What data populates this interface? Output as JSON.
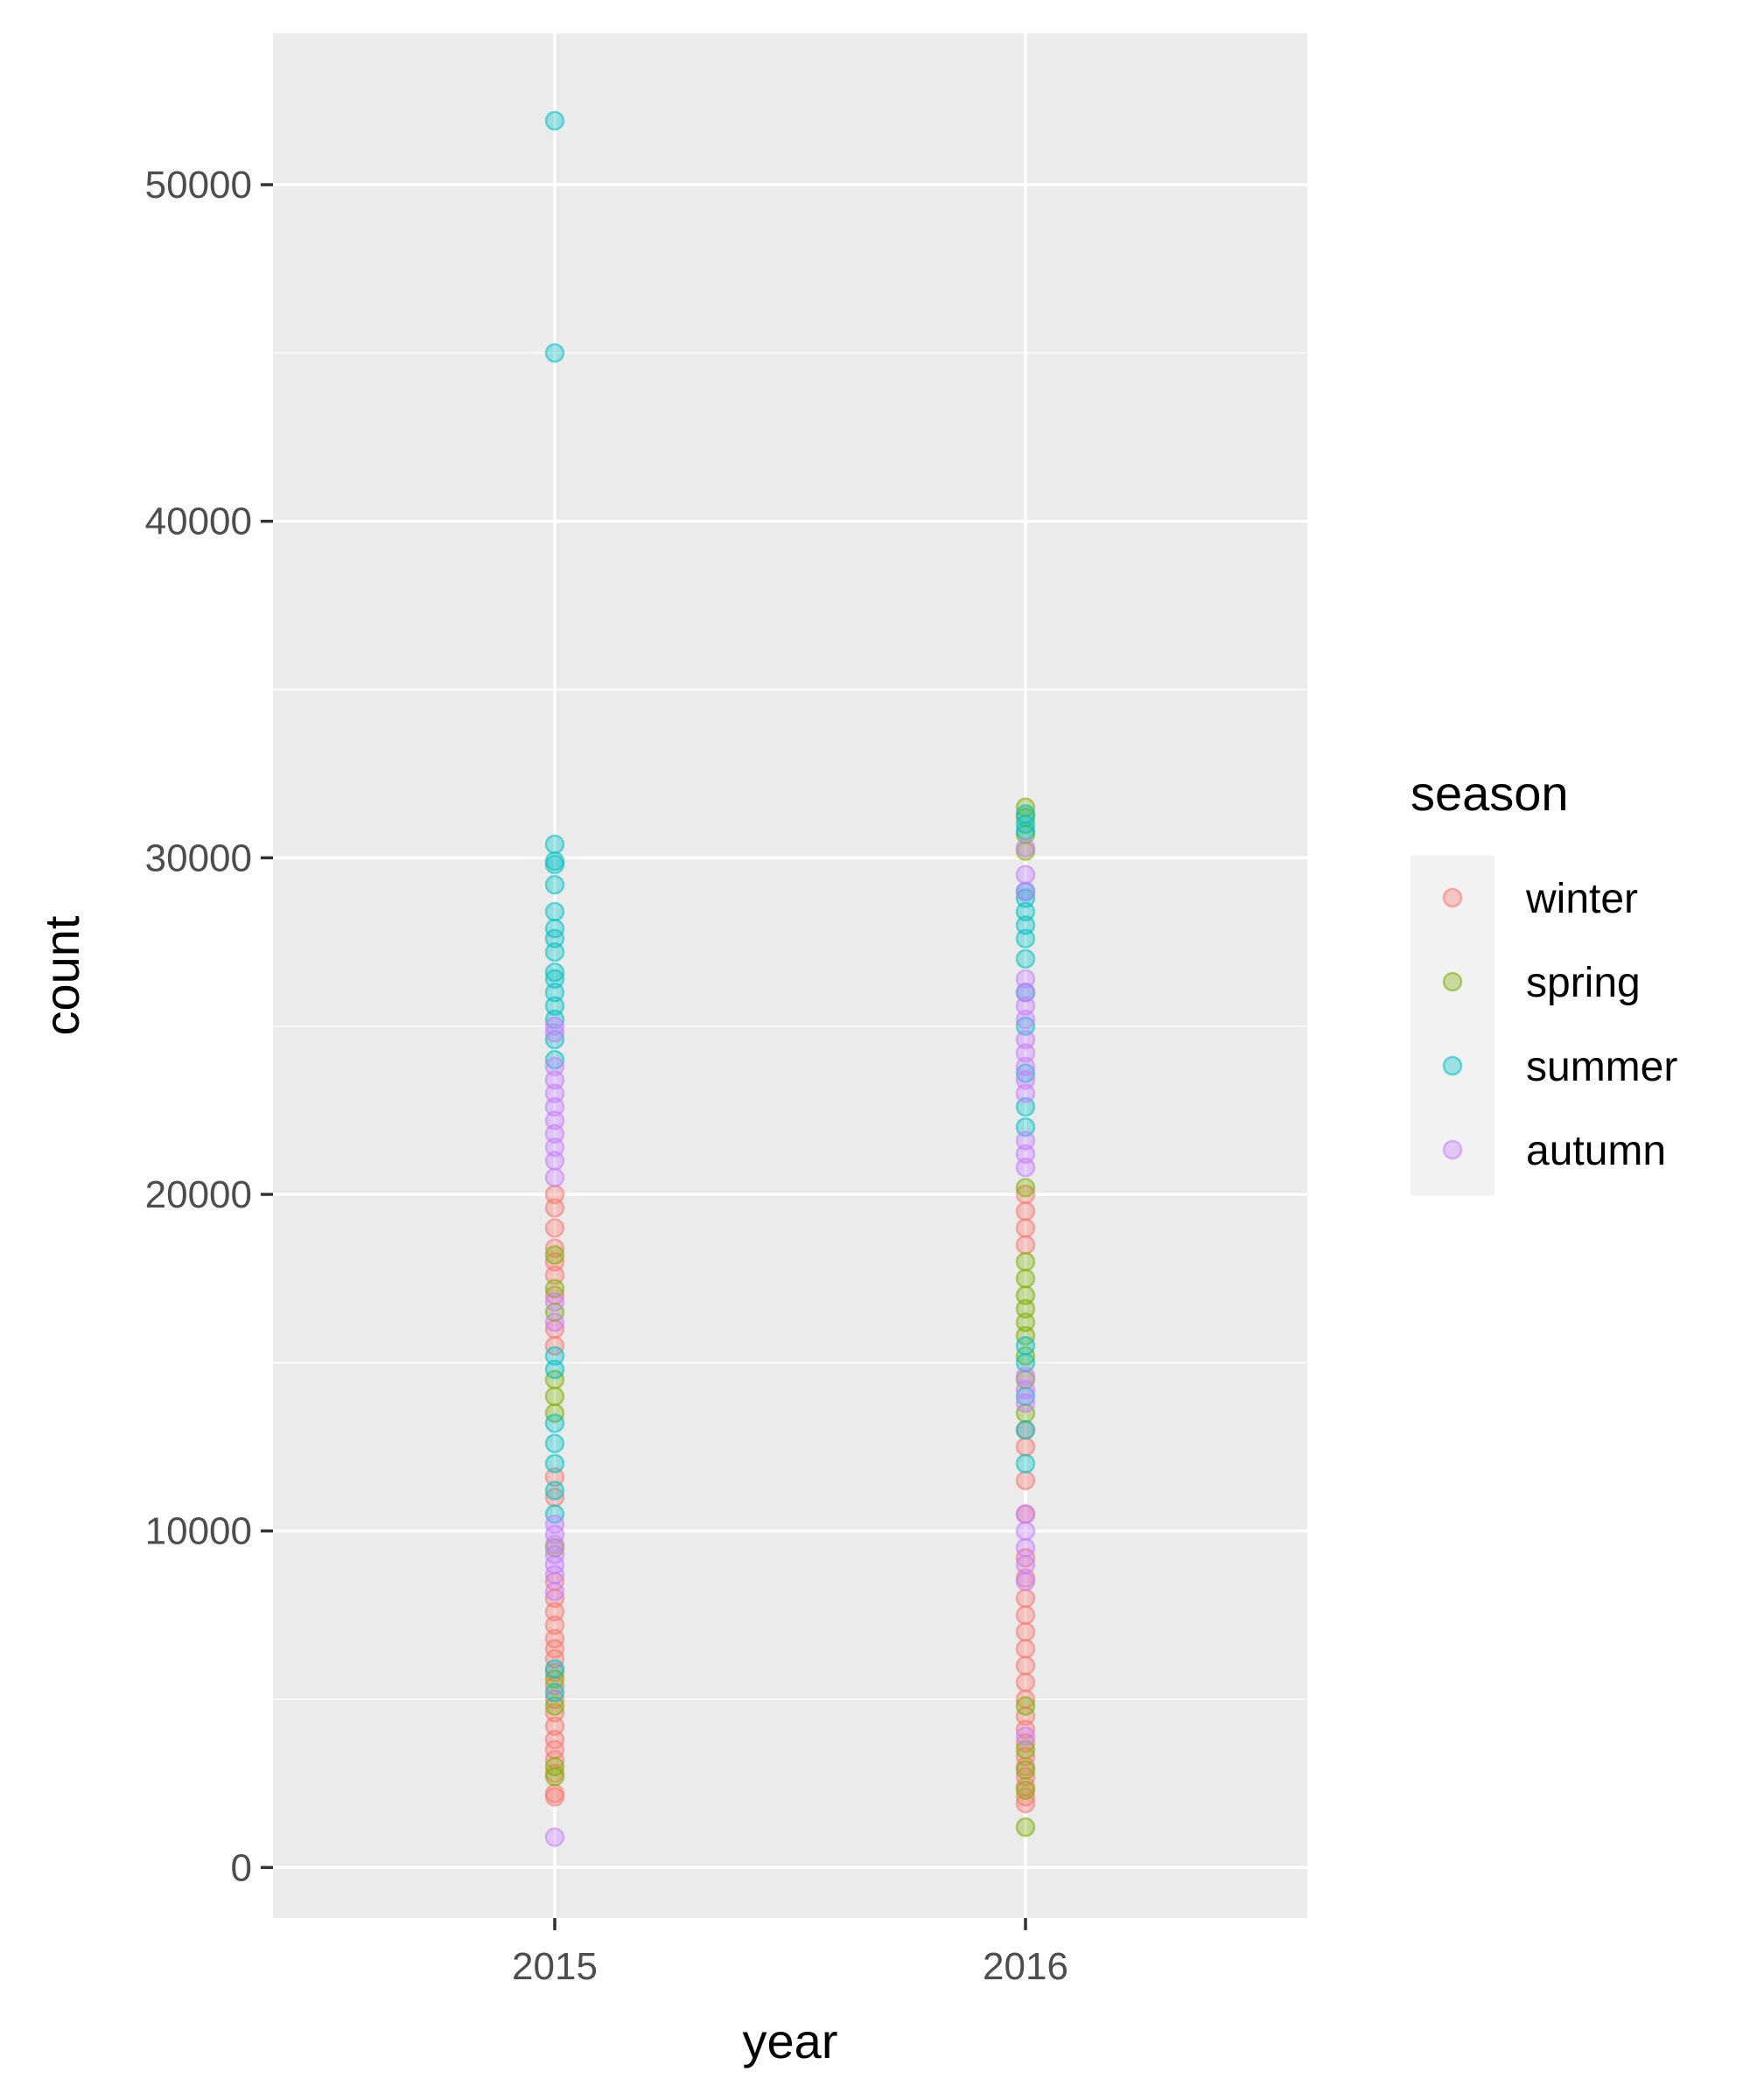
{
  "chart_data": {
    "type": "scatter",
    "xlabel": "year",
    "ylabel": "count",
    "x_categories": [
      "2015",
      "2016"
    ],
    "ylim": [
      -1500,
      54500
    ],
    "yticks": [
      0,
      10000,
      20000,
      30000,
      40000,
      50000
    ],
    "grid": true,
    "legend": {
      "title": "season",
      "position": "right",
      "entries": [
        {
          "name": "winter",
          "color": "#F8766D"
        },
        {
          "name": "spring",
          "color": "#7CAE00"
        },
        {
          "name": "summer",
          "color": "#00BFC4"
        },
        {
          "name": "autumn",
          "color": "#C77CFF"
        }
      ]
    },
    "point_alpha": 0.35,
    "series": [
      {
        "name": "winter",
        "color": "#F8766D",
        "points": [
          [
            "2015",
            2100
          ],
          [
            "2015",
            2200
          ],
          [
            "2015",
            2800
          ],
          [
            "2015",
            3200
          ],
          [
            "2015",
            3500
          ],
          [
            "2015",
            3800
          ],
          [
            "2015",
            4200
          ],
          [
            "2015",
            4600
          ],
          [
            "2015",
            5000
          ],
          [
            "2015",
            5400
          ],
          [
            "2015",
            5800
          ],
          [
            "2015",
            6200
          ],
          [
            "2015",
            6500
          ],
          [
            "2015",
            6800
          ],
          [
            "2015",
            7200
          ],
          [
            "2015",
            7600
          ],
          [
            "2015",
            8000
          ],
          [
            "2015",
            8500
          ],
          [
            "2015",
            11000
          ],
          [
            "2015",
            11600
          ],
          [
            "2015",
            15500
          ],
          [
            "2015",
            16000
          ],
          [
            "2015",
            17000
          ],
          [
            "2015",
            17600
          ],
          [
            "2015",
            18000
          ],
          [
            "2015",
            18400
          ],
          [
            "2015",
            19000
          ],
          [
            "2015",
            19600
          ],
          [
            "2015",
            20000
          ],
          [
            "2016",
            1900
          ],
          [
            "2016",
            2100
          ],
          [
            "2016",
            2400
          ],
          [
            "2016",
            2700
          ],
          [
            "2016",
            3000
          ],
          [
            "2016",
            3300
          ],
          [
            "2016",
            3700
          ],
          [
            "2016",
            4100
          ],
          [
            "2016",
            4500
          ],
          [
            "2016",
            5000
          ],
          [
            "2016",
            5500
          ],
          [
            "2016",
            6000
          ],
          [
            "2016",
            6500
          ],
          [
            "2016",
            7000
          ],
          [
            "2016",
            7500
          ],
          [
            "2016",
            8000
          ],
          [
            "2016",
            8600
          ],
          [
            "2016",
            9200
          ],
          [
            "2016",
            10500
          ],
          [
            "2016",
            11500
          ],
          [
            "2016",
            12500
          ],
          [
            "2016",
            13000
          ],
          [
            "2016",
            18500
          ],
          [
            "2016",
            19000
          ],
          [
            "2016",
            19500
          ],
          [
            "2016",
            20000
          ]
        ]
      },
      {
        "name": "spring",
        "color": "#7CAE00",
        "points": [
          [
            "2015",
            2700
          ],
          [
            "2015",
            3000
          ],
          [
            "2015",
            4800
          ],
          [
            "2015",
            5600
          ],
          [
            "2015",
            9500
          ],
          [
            "2015",
            13500
          ],
          [
            "2015",
            14000
          ],
          [
            "2015",
            14500
          ],
          [
            "2015",
            16500
          ],
          [
            "2015",
            17200
          ],
          [
            "2015",
            18200
          ],
          [
            "2016",
            1200
          ],
          [
            "2016",
            2300
          ],
          [
            "2016",
            2900
          ],
          [
            "2016",
            3500
          ],
          [
            "2016",
            4800
          ],
          [
            "2016",
            13500
          ],
          [
            "2016",
            14500
          ],
          [
            "2016",
            15200
          ],
          [
            "2016",
            15800
          ],
          [
            "2016",
            16200
          ],
          [
            "2016",
            16600
          ],
          [
            "2016",
            17000
          ],
          [
            "2016",
            17500
          ],
          [
            "2016",
            18000
          ],
          [
            "2016",
            20200
          ],
          [
            "2016",
            30200
          ],
          [
            "2016",
            30700
          ],
          [
            "2016",
            31200
          ],
          [
            "2016",
            31500
          ]
        ]
      },
      {
        "name": "summer",
        "color": "#00BFC4",
        "points": [
          [
            "2015",
            5200
          ],
          [
            "2015",
            5900
          ],
          [
            "2015",
            10500
          ],
          [
            "2015",
            11200
          ],
          [
            "2015",
            12000
          ],
          [
            "2015",
            12600
          ],
          [
            "2015",
            13200
          ],
          [
            "2015",
            14800
          ],
          [
            "2015",
            15200
          ],
          [
            "2015",
            24000
          ],
          [
            "2015",
            24600
          ],
          [
            "2015",
            25200
          ],
          [
            "2015",
            25600
          ],
          [
            "2015",
            26000
          ],
          [
            "2015",
            26400
          ],
          [
            "2015",
            26600
          ],
          [
            "2015",
            27200
          ],
          [
            "2015",
            27600
          ],
          [
            "2015",
            27900
          ],
          [
            "2015",
            28400
          ],
          [
            "2015",
            29200
          ],
          [
            "2015",
            29800
          ],
          [
            "2015",
            29900
          ],
          [
            "2015",
            30400
          ],
          [
            "2015",
            45000
          ],
          [
            "2015",
            51900
          ],
          [
            "2016",
            12000
          ],
          [
            "2016",
            13000
          ],
          [
            "2016",
            14000
          ],
          [
            "2016",
            15000
          ],
          [
            "2016",
            15500
          ],
          [
            "2016",
            22000
          ],
          [
            "2016",
            22600
          ],
          [
            "2016",
            23600
          ],
          [
            "2016",
            25000
          ],
          [
            "2016",
            26000
          ],
          [
            "2016",
            27000
          ],
          [
            "2016",
            27600
          ],
          [
            "2016",
            28000
          ],
          [
            "2016",
            28400
          ],
          [
            "2016",
            28800
          ],
          [
            "2016",
            29000
          ],
          [
            "2016",
            30800
          ],
          [
            "2016",
            31000
          ],
          [
            "2016",
            31300
          ]
        ]
      },
      {
        "name": "autumn",
        "color": "#C77CFF",
        "points": [
          [
            "2015",
            900
          ],
          [
            "2015",
            8200
          ],
          [
            "2015",
            8700
          ],
          [
            "2015",
            9000
          ],
          [
            "2015",
            9300
          ],
          [
            "2015",
            9600
          ],
          [
            "2015",
            9900
          ],
          [
            "2015",
            10200
          ],
          [
            "2015",
            16200
          ],
          [
            "2015",
            16800
          ],
          [
            "2015",
            20500
          ],
          [
            "2015",
            21000
          ],
          [
            "2015",
            21400
          ],
          [
            "2015",
            21800
          ],
          [
            "2015",
            22200
          ],
          [
            "2015",
            22600
          ],
          [
            "2015",
            23000
          ],
          [
            "2015",
            23400
          ],
          [
            "2015",
            23800
          ],
          [
            "2015",
            24800
          ],
          [
            "2015",
            25000
          ],
          [
            "2016",
            3900
          ],
          [
            "2016",
            8500
          ],
          [
            "2016",
            9000
          ],
          [
            "2016",
            9500
          ],
          [
            "2016",
            10000
          ],
          [
            "2016",
            10500
          ],
          [
            "2016",
            13800
          ],
          [
            "2016",
            14200
          ],
          [
            "2016",
            14600
          ],
          [
            "2016",
            20800
          ],
          [
            "2016",
            21200
          ],
          [
            "2016",
            21600
          ],
          [
            "2016",
            23000
          ],
          [
            "2016",
            23400
          ],
          [
            "2016",
            23800
          ],
          [
            "2016",
            24200
          ],
          [
            "2016",
            24600
          ],
          [
            "2016",
            25200
          ],
          [
            "2016",
            25600
          ],
          [
            "2016",
            26000
          ],
          [
            "2016",
            26400
          ],
          [
            "2016",
            29000
          ],
          [
            "2016",
            29500
          ],
          [
            "2016",
            30300
          ]
        ]
      }
    ]
  }
}
